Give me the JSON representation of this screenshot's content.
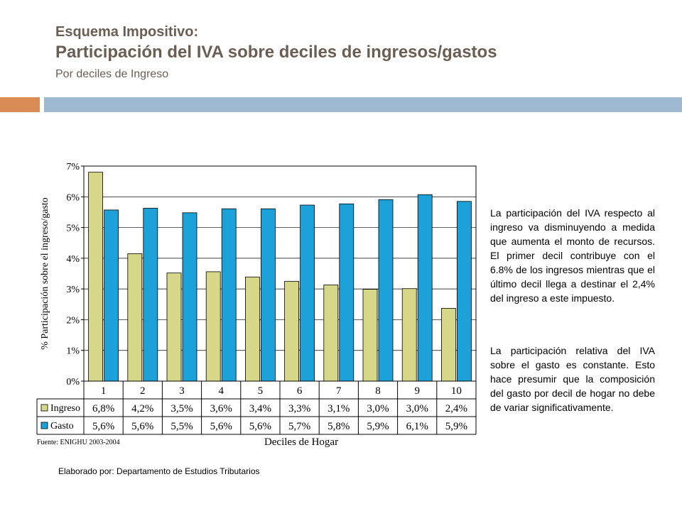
{
  "header": {
    "line1": "Esquema Impositivo:",
    "line2": "Participación del IVA sobre deciles de ingresos/gastos",
    "line3": "Por deciles de Ingreso"
  },
  "colors": {
    "title": "#6b5d52",
    "accent_orange": "#d98c56",
    "accent_blue": "#a0b9d2",
    "ingreso": "#d7d78a",
    "gasto": "#1ca2d8"
  },
  "chart_data": {
    "type": "bar",
    "title": "",
    "xlabel": "Deciles de Hogar",
    "ylabel": "% Participación sobre el ingreso/gasto",
    "ylim": [
      0,
      7
    ],
    "yticks": [
      "0%",
      "1%",
      "2%",
      "3%",
      "4%",
      "5%",
      "6%",
      "7%"
    ],
    "categories": [
      "1",
      "2",
      "3",
      "4",
      "5",
      "6",
      "7",
      "8",
      "9",
      "10"
    ],
    "series": [
      {
        "name": "Ingreso",
        "values": [
          6.8,
          4.15,
          3.52,
          3.56,
          3.39,
          3.25,
          3.13,
          2.99,
          3.01,
          2.37
        ],
        "labels": [
          "6,8%",
          "4,2%",
          "3,5%",
          "3,6%",
          "3,4%",
          "3,3%",
          "3,1%",
          "3,0%",
          "3,0%",
          "2,4%"
        ]
      },
      {
        "name": "Gasto",
        "values": [
          5.57,
          5.63,
          5.48,
          5.61,
          5.61,
          5.73,
          5.77,
          5.91,
          6.07,
          5.85
        ],
        "labels": [
          "5,6%",
          "5,6%",
          "5,5%",
          "5,6%",
          "5,6%",
          "5,7%",
          "5,8%",
          "5,9%",
          "6,1%",
          "5,9%"
        ]
      }
    ],
    "source": "Fuente: ENIGHU 2003-2004",
    "grid": true
  },
  "text": {
    "paragraph1": "La participación del IVA respecto al ingreso va disminuyendo a medida que aumenta el monto de recursos. El primer decil contribuye con el 6.8% de los ingresos mientras que el último decil llega a destinar el 2,4% del ingreso a este impuesto.",
    "paragraph2": "La participación relativa del IVA sobre el gasto es constante. Esto hace presumir que la composición del gasto por decil de hogar no debe de variar significativamente.",
    "footer": "Elaborado por: Departamento de Estudios Tributarios"
  }
}
